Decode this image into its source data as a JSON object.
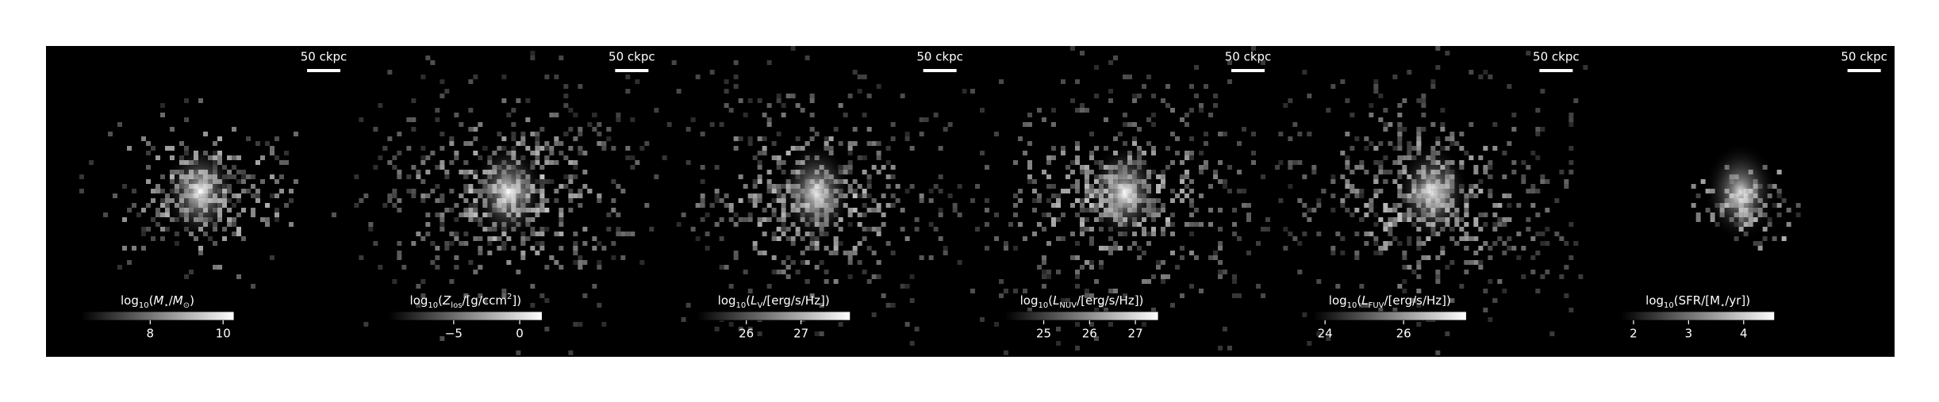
{
  "panels": [
    {
      "scale_label": "50 ckpc",
      "colorbar_label": [
        {
          "t": "log"
        },
        {
          "t": "10",
          "sub": true
        },
        {
          "t": "("
        },
        {
          "t": "M",
          "italic": true
        },
        {
          "t": "⋆",
          "sub": true
        },
        {
          "t": "/"
        },
        {
          "t": "M",
          "italic": true
        },
        {
          "t": "⊙",
          "sub": true
        },
        {
          "t": ")"
        }
      ],
      "clim": [
        6.1,
        10.3
      ],
      "ticks": [
        8,
        10
      ],
      "center": [
        0.5,
        0.47
      ],
      "spread": 0.16,
      "density": 0.45
    },
    {
      "scale_label": "50 ckpc",
      "colorbar_label": [
        {
          "t": "log"
        },
        {
          "t": "10",
          "sub": true
        },
        {
          "t": "("
        },
        {
          "t": "Z",
          "italic": true
        },
        {
          "t": "los",
          "sub": true
        },
        {
          "t": "/[g/ccm"
        },
        {
          "t": "2",
          "sup": true
        },
        {
          "t": "])"
        }
      ],
      "clim": [
        -9.9,
        1.7
      ],
      "ticks": [
        {
          "value": -5,
          "label": "−5"
        },
        0
      ],
      "center": [
        0.5,
        0.47
      ],
      "spread": 0.3,
      "density": 0.75
    },
    {
      "scale_label": "50 ckpc",
      "colorbar_label": [
        {
          "t": "log"
        },
        {
          "t": "10",
          "sub": true
        },
        {
          "t": "("
        },
        {
          "t": "L",
          "italic": true
        },
        {
          "t": "V",
          "sub": true
        },
        {
          "t": "/[erg/s/Hz])"
        }
      ],
      "clim": [
        25.1,
        27.9
      ],
      "ticks": [
        26,
        27
      ],
      "center": [
        0.48,
        0.48
      ],
      "spread": 0.3,
      "density": 0.7
    },
    {
      "scale_label": "50 ckpc",
      "colorbar_label": [
        {
          "t": "log"
        },
        {
          "t": "10",
          "sub": true
        },
        {
          "t": "("
        },
        {
          "t": "L",
          "italic": true
        },
        {
          "t": "NUV",
          "sub": true
        },
        {
          "t": "/[erg/s/Hz])"
        }
      ],
      "clim": [
        24.16,
        27.5
      ],
      "ticks": [
        25,
        26,
        27
      ],
      "center": [
        0.48,
        0.48
      ],
      "spread": 0.32,
      "density": 0.8
    },
    {
      "scale_label": "50 ckpc",
      "colorbar_label": [
        {
          "t": "log"
        },
        {
          "t": "10",
          "sub": true
        },
        {
          "t": "("
        },
        {
          "t": "L",
          "italic": true
        },
        {
          "t": "FUV",
          "sub": true
        },
        {
          "t": "/[erg/s/Hz])"
        }
      ],
      "clim": [
        23.7,
        27.6
      ],
      "ticks": [
        24,
        26
      ],
      "center": [
        0.48,
        0.48
      ],
      "spread": 0.32,
      "density": 0.8
    },
    {
      "scale_label": "50 ckpc",
      "colorbar_label": [
        {
          "t": "log"
        },
        {
          "t": "10",
          "sub": true
        },
        {
          "t": "(SFR/[M"
        },
        {
          "t": "⋆",
          "sub": true
        },
        {
          "t": "/yr])"
        }
      ],
      "clim": [
        1.78,
        4.56
      ],
      "ticks": [
        2,
        3,
        4
      ],
      "center": [
        0.5,
        0.5
      ],
      "spread": 0.08,
      "density": 0.15
    }
  ]
}
